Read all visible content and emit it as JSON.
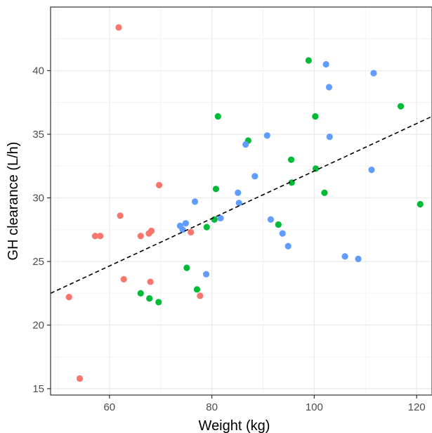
{
  "chart_data": {
    "type": "scatter",
    "title": "",
    "xlabel": "Weight (kg)",
    "ylabel": "GH clearance (L/h)",
    "xlim": [
      48.5,
      123.0
    ],
    "ylim": [
      14.5,
      45.0
    ],
    "x_ticks": [
      60,
      80,
      100,
      120
    ],
    "y_ticks": [
      15,
      20,
      25,
      30,
      35,
      40
    ],
    "grid": true,
    "legend": "none",
    "colors": {
      "group1": "#f8766d",
      "group2": "#00ba38",
      "group3": "#619cff",
      "trend": "#000000"
    },
    "series": [
      {
        "color": "#f8766d",
        "points": [
          {
            "x": 61.8,
            "y": 43.4
          },
          {
            "x": 69.7,
            "y": 31.0
          },
          {
            "x": 62.1,
            "y": 28.6
          },
          {
            "x": 57.2,
            "y": 27.0
          },
          {
            "x": 58.2,
            "y": 27.0
          },
          {
            "x": 66.1,
            "y": 27.0
          },
          {
            "x": 67.7,
            "y": 27.2
          },
          {
            "x": 68.2,
            "y": 27.4
          },
          {
            "x": 75.9,
            "y": 27.3
          },
          {
            "x": 62.8,
            "y": 23.6
          },
          {
            "x": 68.0,
            "y": 23.4
          },
          {
            "x": 77.7,
            "y": 22.3
          },
          {
            "x": 52.1,
            "y": 22.2
          },
          {
            "x": 54.2,
            "y": 15.8
          }
        ]
      },
      {
        "color": "#00ba38",
        "points": [
          {
            "x": 98.9,
            "y": 40.8
          },
          {
            "x": 116.9,
            "y": 37.2
          },
          {
            "x": 81.2,
            "y": 36.4
          },
          {
            "x": 100.2,
            "y": 36.4
          },
          {
            "x": 87.1,
            "y": 34.5
          },
          {
            "x": 95.5,
            "y": 33.0
          },
          {
            "x": 100.3,
            "y": 32.3
          },
          {
            "x": 95.6,
            "y": 31.2
          },
          {
            "x": 80.8,
            "y": 30.7
          },
          {
            "x": 102.0,
            "y": 30.4
          },
          {
            "x": 120.7,
            "y": 29.5
          },
          {
            "x": 80.5,
            "y": 28.3
          },
          {
            "x": 79.0,
            "y": 27.7
          },
          {
            "x": 93.0,
            "y": 27.9
          },
          {
            "x": 75.1,
            "y": 24.5
          },
          {
            "x": 77.1,
            "y": 22.8
          },
          {
            "x": 66.1,
            "y": 22.5
          },
          {
            "x": 67.8,
            "y": 22.1
          },
          {
            "x": 69.6,
            "y": 21.8
          }
        ]
      },
      {
        "color": "#619cff",
        "points": [
          {
            "x": 102.3,
            "y": 40.5
          },
          {
            "x": 111.6,
            "y": 39.8
          },
          {
            "x": 102.9,
            "y": 38.7
          },
          {
            "x": 90.8,
            "y": 34.9
          },
          {
            "x": 103.0,
            "y": 34.8
          },
          {
            "x": 86.6,
            "y": 34.2
          },
          {
            "x": 111.2,
            "y": 32.2
          },
          {
            "x": 88.4,
            "y": 31.7
          },
          {
            "x": 85.1,
            "y": 30.4
          },
          {
            "x": 76.7,
            "y": 29.7
          },
          {
            "x": 85.3,
            "y": 29.6
          },
          {
            "x": 81.7,
            "y": 28.4
          },
          {
            "x": 91.5,
            "y": 28.3
          },
          {
            "x": 74.9,
            "y": 28.0
          },
          {
            "x": 73.8,
            "y": 27.8
          },
          {
            "x": 74.3,
            "y": 27.5
          },
          {
            "x": 93.8,
            "y": 27.2
          },
          {
            "x": 94.9,
            "y": 26.2
          },
          {
            "x": 106.0,
            "y": 25.4
          },
          {
            "x": 108.6,
            "y": 25.2
          },
          {
            "x": 78.9,
            "y": 24.0
          }
        ]
      }
    ],
    "trend_line": {
      "style": "dashed",
      "points": [
        {
          "x": 48.5,
          "y": 22.5
        },
        {
          "x": 123.0,
          "y": 36.4
        }
      ]
    }
  }
}
